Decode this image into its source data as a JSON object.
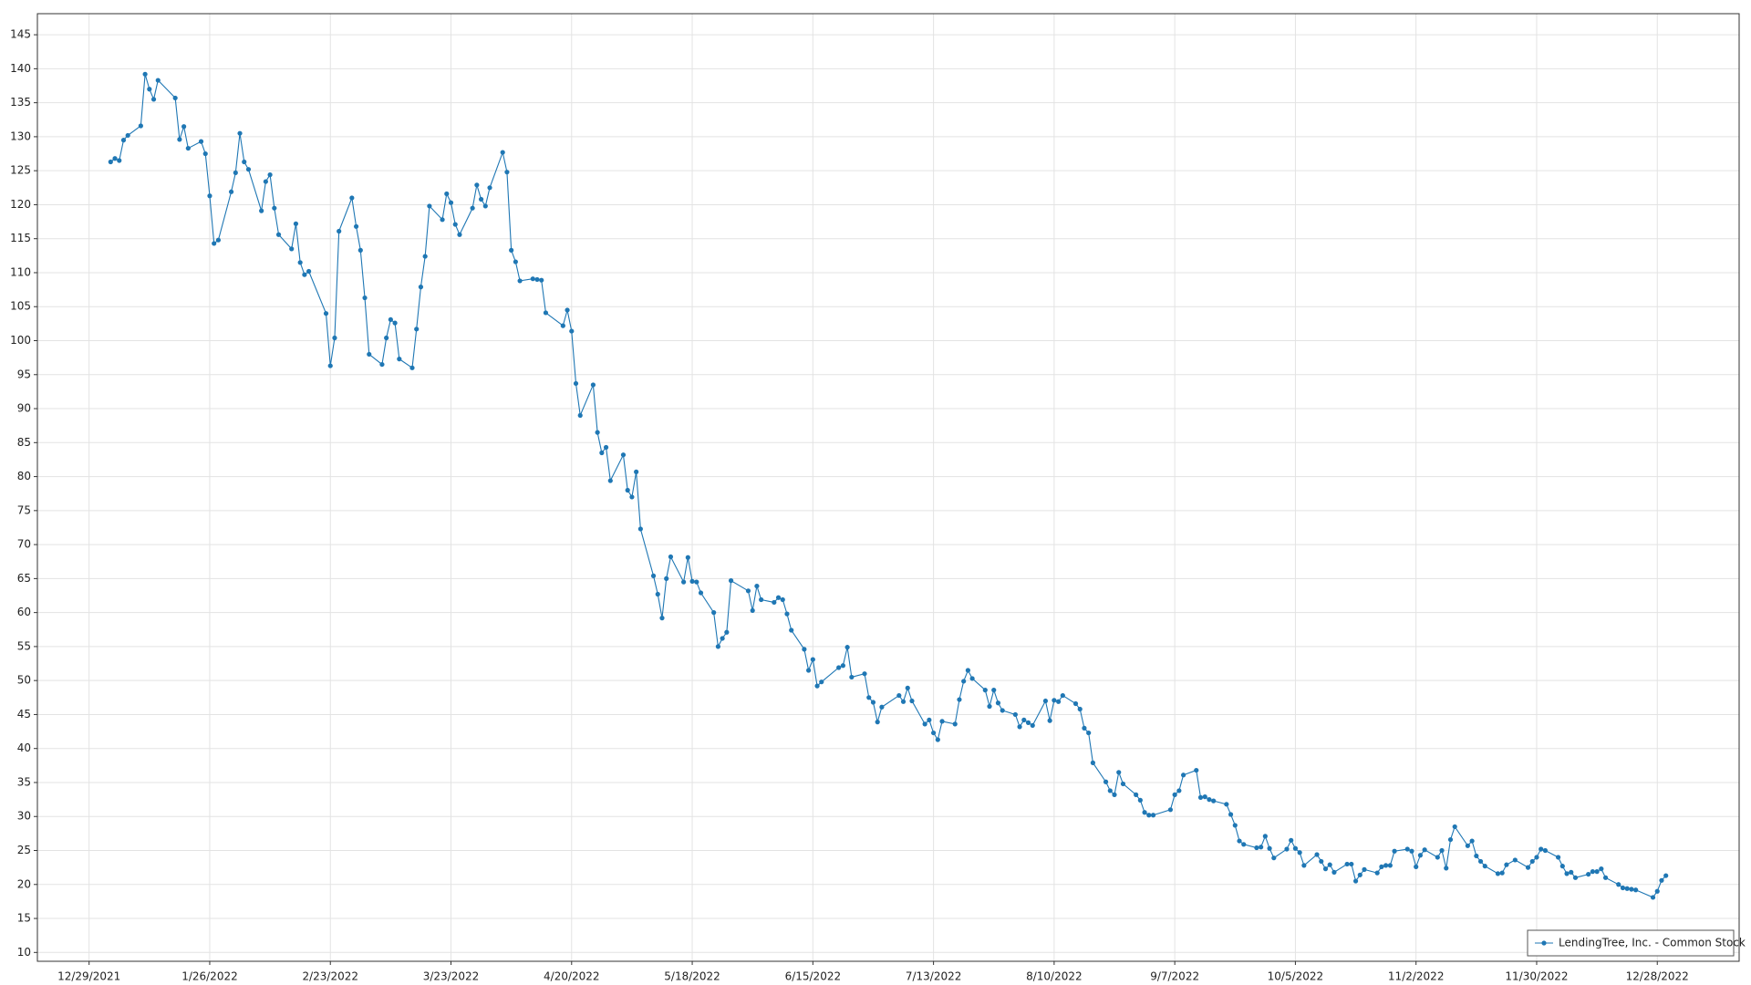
{
  "chart_data": {
    "type": "line",
    "x": [
      "2022-01-03",
      "2022-01-04",
      "2022-01-05",
      "2022-01-06",
      "2022-01-07",
      "2022-01-10",
      "2022-01-11",
      "2022-01-12",
      "2022-01-13",
      "2022-01-14",
      "2022-01-18",
      "2022-01-19",
      "2022-01-20",
      "2022-01-21",
      "2022-01-24",
      "2022-01-25",
      "2022-01-26",
      "2022-01-27",
      "2022-01-28",
      "2022-01-31",
      "2022-02-01",
      "2022-02-02",
      "2022-02-03",
      "2022-02-04",
      "2022-02-07",
      "2022-02-08",
      "2022-02-09",
      "2022-02-10",
      "2022-02-11",
      "2022-02-14",
      "2022-02-15",
      "2022-02-16",
      "2022-02-17",
      "2022-02-18",
      "2022-02-22",
      "2022-02-23",
      "2022-02-24",
      "2022-02-25",
      "2022-02-28",
      "2022-03-01",
      "2022-03-02",
      "2022-03-03",
      "2022-03-04",
      "2022-03-07",
      "2022-03-08",
      "2022-03-09",
      "2022-03-10",
      "2022-03-11",
      "2022-03-14",
      "2022-03-15",
      "2022-03-16",
      "2022-03-17",
      "2022-03-18",
      "2022-03-21",
      "2022-03-22",
      "2022-03-23",
      "2022-03-24",
      "2022-03-25",
      "2022-03-28",
      "2022-03-29",
      "2022-03-30",
      "2022-03-31",
      "2022-04-01",
      "2022-04-04",
      "2022-04-05",
      "2022-04-06",
      "2022-04-07",
      "2022-04-08",
      "2022-04-11",
      "2022-04-12",
      "2022-04-13",
      "2022-04-14",
      "2022-04-18",
      "2022-04-19",
      "2022-04-20",
      "2022-04-21",
      "2022-04-22",
      "2022-04-25",
      "2022-04-26",
      "2022-04-27",
      "2022-04-28",
      "2022-04-29",
      "2022-05-02",
      "2022-05-03",
      "2022-05-04",
      "2022-05-05",
      "2022-05-06",
      "2022-05-09",
      "2022-05-10",
      "2022-05-11",
      "2022-05-12",
      "2022-05-13",
      "2022-05-16",
      "2022-05-17",
      "2022-05-18",
      "2022-05-19",
      "2022-05-20",
      "2022-05-23",
      "2022-05-24",
      "2022-05-25",
      "2022-05-26",
      "2022-05-27",
      "2022-05-31",
      "2022-06-01",
      "2022-06-02",
      "2022-06-03",
      "2022-06-06",
      "2022-06-07",
      "2022-06-08",
      "2022-06-09",
      "2022-06-10",
      "2022-06-13",
      "2022-06-14",
      "2022-06-15",
      "2022-06-16",
      "2022-06-17",
      "2022-06-21",
      "2022-06-22",
      "2022-06-23",
      "2022-06-24",
      "2022-06-27",
      "2022-06-28",
      "2022-06-29",
      "2022-06-30",
      "2022-07-01",
      "2022-07-05",
      "2022-07-06",
      "2022-07-07",
      "2022-07-08",
      "2022-07-11",
      "2022-07-12",
      "2022-07-13",
      "2022-07-14",
      "2022-07-15",
      "2022-07-18",
      "2022-07-19",
      "2022-07-20",
      "2022-07-21",
      "2022-07-22",
      "2022-07-25",
      "2022-07-26",
      "2022-07-27",
      "2022-07-28",
      "2022-07-29",
      "2022-08-01",
      "2022-08-02",
      "2022-08-03",
      "2022-08-04",
      "2022-08-05",
      "2022-08-08",
      "2022-08-09",
      "2022-08-10",
      "2022-08-11",
      "2022-08-12",
      "2022-08-15",
      "2022-08-16",
      "2022-08-17",
      "2022-08-18",
      "2022-08-19",
      "2022-08-22",
      "2022-08-23",
      "2022-08-24",
      "2022-08-25",
      "2022-08-26",
      "2022-08-29",
      "2022-08-30",
      "2022-08-31",
      "2022-09-01",
      "2022-09-02",
      "2022-09-06",
      "2022-09-07",
      "2022-09-08",
      "2022-09-09",
      "2022-09-12",
      "2022-09-13",
      "2022-09-14",
      "2022-09-15",
      "2022-09-16",
      "2022-09-19",
      "2022-09-20",
      "2022-09-21",
      "2022-09-22",
      "2022-09-23",
      "2022-09-26",
      "2022-09-27",
      "2022-09-28",
      "2022-09-29",
      "2022-09-30",
      "2022-10-03",
      "2022-10-04",
      "2022-10-05",
      "2022-10-06",
      "2022-10-07",
      "2022-10-10",
      "2022-10-11",
      "2022-10-12",
      "2022-10-13",
      "2022-10-14",
      "2022-10-17",
      "2022-10-18",
      "2022-10-19",
      "2022-10-20",
      "2022-10-21",
      "2022-10-24",
      "2022-10-25",
      "2022-10-26",
      "2022-10-27",
      "2022-10-28",
      "2022-10-31",
      "2022-11-01",
      "2022-11-02",
      "2022-11-03",
      "2022-11-04",
      "2022-11-07",
      "2022-11-08",
      "2022-11-09",
      "2022-11-10",
      "2022-11-11",
      "2022-11-14",
      "2022-11-15",
      "2022-11-16",
      "2022-11-17",
      "2022-11-18",
      "2022-11-21",
      "2022-11-22",
      "2022-11-23",
      "2022-11-25",
      "2022-11-28",
      "2022-11-29",
      "2022-11-30",
      "2022-12-01",
      "2022-12-02",
      "2022-12-05",
      "2022-12-06",
      "2022-12-07",
      "2022-12-08",
      "2022-12-09",
      "2022-12-12",
      "2022-12-13",
      "2022-12-14",
      "2022-12-15",
      "2022-12-16",
      "2022-12-19",
      "2022-12-20",
      "2022-12-21",
      "2022-12-22",
      "2022-12-23",
      "2022-12-27",
      "2022-12-28",
      "2022-12-29",
      "2022-12-30"
    ],
    "series": [
      {
        "name": "LendingTree, Inc. - Common Stock",
        "color": "#1f77b4",
        "values": [
          126.3,
          126.8,
          126.5,
          129.5,
          130.2,
          131.6,
          139.2,
          137,
          135.5,
          138.3,
          135.7,
          129.6,
          131.5,
          128.3,
          129.3,
          127.5,
          121.3,
          114.3,
          114.8,
          121.9,
          124.7,
          130.5,
          126.3,
          125.2,
          119.1,
          123.4,
          124.4,
          119.5,
          115.6,
          113.5,
          117.2,
          111.5,
          109.7,
          110.2,
          104,
          96.3,
          100.4,
          116.1,
          121,
          116.8,
          113.3,
          106.3,
          98,
          96.5,
          100.4,
          103.1,
          102.6,
          97.3,
          96,
          101.7,
          107.9,
          112.4,
          119.8,
          117.8,
          121.6,
          120.3,
          117.1,
          115.6,
          119.5,
          122.9,
          120.8,
          119.8,
          122.5,
          127.7,
          124.8,
          113.3,
          111.6,
          108.8,
          109.1,
          109,
          108.9,
          104.1,
          102.2,
          104.5,
          101.4,
          93.7,
          89,
          93.5,
          86.5,
          83.5,
          84.3,
          79.4,
          83.2,
          78,
          77,
          80.7,
          72.3,
          65.4,
          62.7,
          59.2,
          65,
          68.2,
          64.5,
          68.1,
          64.6,
          64.5,
          62.9,
          60,
          55,
          56.2,
          57.1,
          64.7,
          63.2,
          60.3,
          63.9,
          61.9,
          61.5,
          62.2,
          61.9,
          59.8,
          57.4,
          54.6,
          51.5,
          53.1,
          49.2,
          49.8,
          51.9,
          52.2,
          54.9,
          50.5,
          51,
          47.5,
          46.8,
          43.9,
          46.1,
          47.8,
          46.9,
          48.9,
          47,
          43.6,
          44.2,
          42.3,
          41.3,
          44,
          43.6,
          47.2,
          49.9,
          51.5,
          50.3,
          48.6,
          46.2,
          48.6,
          46.7,
          45.6,
          45,
          43.2,
          44.2,
          43.8,
          43.4,
          47,
          44.1,
          47.1,
          46.9,
          47.8,
          46.6,
          45.8,
          43,
          42.3,
          37.9,
          35.1,
          33.8,
          33.2,
          36.5,
          34.8,
          33.2,
          32.4,
          30.6,
          30.2,
          30.2,
          31,
          33.2,
          33.8,
          36.1,
          36.8,
          32.8,
          32.9,
          32.5,
          32.3,
          31.8,
          30.3,
          28.7,
          26.4,
          25.9,
          25.4,
          25.5,
          27.1,
          25.3,
          23.9,
          25.2,
          26.5,
          25.3,
          24.7,
          22.8,
          24.4,
          23.4,
          22.3,
          22.9,
          21.8,
          23,
          23,
          20.5,
          21.4,
          22.2,
          21.7,
          22.6,
          22.8,
          22.8,
          24.9,
          25.2,
          24.9,
          22.6,
          24.3,
          25.1,
          24,
          25,
          22.4,
          26.6,
          28.5,
          25.7,
          26.4,
          24.2,
          23.4,
          22.7,
          21.6,
          21.7,
          22.9,
          23.6,
          22.5,
          23.4,
          24,
          25.2,
          25,
          24,
          22.7,
          21.6,
          21.8,
          21,
          21.5,
          21.9,
          21.9,
          22.3,
          21,
          20,
          19.5,
          19.4,
          19.3,
          19.2,
          18.1,
          19,
          20.6,
          21.3
        ]
      }
    ],
    "xlim": [
      "2021-12-17",
      "2023-01-16"
    ],
    "xticks": [
      {
        "value": "2021-12-29",
        "label": "12/29/2021"
      },
      {
        "value": "2022-01-26",
        "label": "1/26/2022"
      },
      {
        "value": "2022-02-23",
        "label": "2/23/2022"
      },
      {
        "value": "2022-03-23",
        "label": "3/23/2022"
      },
      {
        "value": "2022-04-20",
        "label": "4/20/2022"
      },
      {
        "value": "2022-05-18",
        "label": "5/18/2022"
      },
      {
        "value": "2022-06-15",
        "label": "6/15/2022"
      },
      {
        "value": "2022-07-13",
        "label": "7/13/2022"
      },
      {
        "value": "2022-08-10",
        "label": "8/10/2022"
      },
      {
        "value": "2022-09-07",
        "label": "9/7/2022"
      },
      {
        "value": "2022-10-05",
        "label": "10/5/2022"
      },
      {
        "value": "2022-11-02",
        "label": "11/2/2022"
      },
      {
        "value": "2022-11-30",
        "label": "11/30/2022"
      },
      {
        "value": "2022-12-28",
        "label": "12/28/2022"
      }
    ],
    "ylim": [
      8.7,
      148.1
    ],
    "yticks": [
      10,
      15,
      20,
      25,
      30,
      35,
      40,
      45,
      50,
      55,
      60,
      65,
      70,
      75,
      80,
      85,
      90,
      95,
      100,
      105,
      110,
      115,
      120,
      125,
      130,
      135,
      140,
      145
    ],
    "grid": true,
    "legend": "lower right"
  }
}
